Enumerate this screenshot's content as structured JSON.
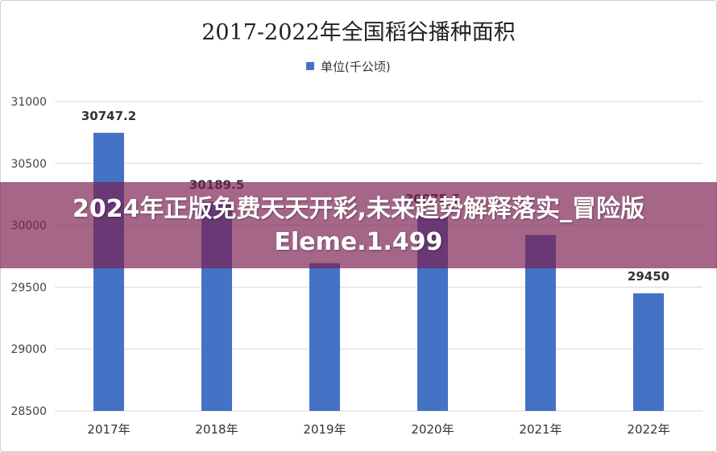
{
  "chart_data": {
    "type": "bar",
    "title": "2017-2022年全国稻谷播种面积",
    "xlabel": "",
    "ylabel": "",
    "categories": [
      "2017年",
      "2018年",
      "2019年",
      "2020年",
      "2021年",
      "2022年"
    ],
    "series": [
      {
        "name": "单位(千公顷)",
        "values": [
          30747.2,
          30189.5,
          29694,
          30075.5,
          29921,
          29450
        ],
        "labels": [
          "30747.2",
          "30189.5",
          "",
          "30075.5",
          "",
          "29450"
        ]
      }
    ],
    "ylim": [
      28500,
      31000
    ],
    "yticks": [
      28500,
      29000,
      29500,
      30000,
      30500,
      31000
    ],
    "grid": true,
    "legend": "top",
    "colors": {
      "bar": "#4472C4",
      "grid": "#d9d9d9"
    }
  },
  "overlay": {
    "text": "2024年正版免费天天开彩,未来趋势解释落实_冒险版Eleme.1.499",
    "color": "#7A1E50"
  }
}
